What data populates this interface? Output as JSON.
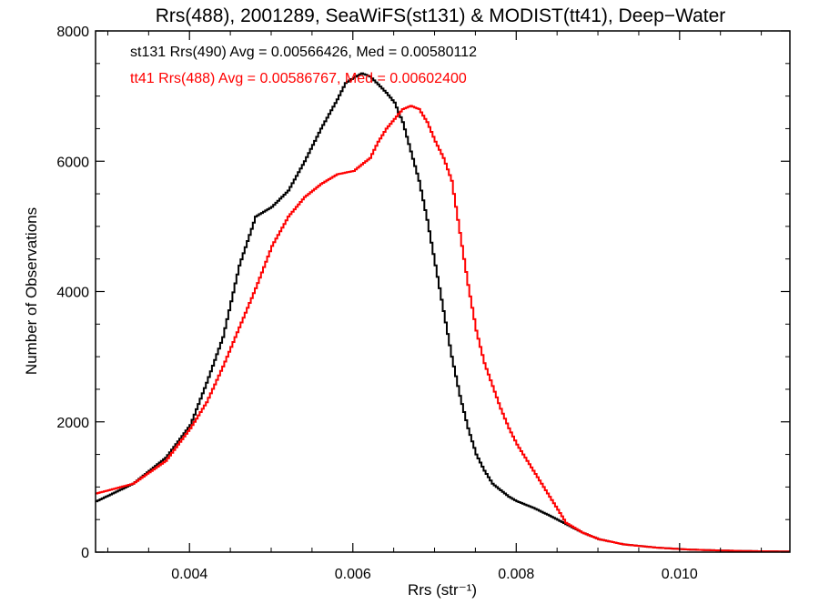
{
  "chart_data": {
    "type": "line",
    "title": "Rrs(488), 2001289, SeaWiFS(st131) & MODIST(tt41), Deep−Water",
    "xlabel": "Rrs (str⁻¹)",
    "ylabel": "Number of Observations",
    "xlim": [
      0.00285,
      0.01135
    ],
    "ylim": [
      0,
      8000
    ],
    "x_ticks": [
      0.004,
      0.006,
      0.008,
      0.01
    ],
    "x_tick_labels": [
      "0.004",
      "0.006",
      "0.008",
      "0.010"
    ],
    "y_ticks": [
      0,
      2000,
      4000,
      6000,
      8000
    ],
    "y_tick_labels": [
      "0",
      "2000",
      "4000",
      "6000",
      "8000"
    ],
    "grid": false,
    "legend_position": "top-left",
    "series": [
      {
        "label": "st131 Rrs(490) Avg = 0.00566426, Med = 0.00580112",
        "color": "#000000",
        "x": [
          0.00285,
          0.0033,
          0.0037,
          0.004,
          0.0042,
          0.0044,
          0.0046,
          0.0048,
          0.005,
          0.0052,
          0.0054,
          0.0056,
          0.0058,
          0.0059,
          0.006,
          0.0061,
          0.0062,
          0.0063,
          0.0064,
          0.0065,
          0.0066,
          0.0067,
          0.0068,
          0.0069,
          0.007,
          0.0071,
          0.0072,
          0.0073,
          0.0074,
          0.0075,
          0.0076,
          0.0077,
          0.0078,
          0.0079,
          0.008,
          0.0082,
          0.0084,
          0.0086,
          0.0088,
          0.009,
          0.0093,
          0.0097,
          0.0101,
          0.0105,
          0.0109,
          0.01135
        ],
        "y": [
          780,
          1050,
          1450,
          1950,
          2600,
          3300,
          4400,
          5150,
          5300,
          5550,
          6000,
          6500,
          6950,
          7200,
          7280,
          7350,
          7300,
          7180,
          7050,
          6900,
          6600,
          6150,
          5700,
          5100,
          4400,
          3700,
          3000,
          2400,
          1900,
          1500,
          1250,
          1050,
          950,
          850,
          780,
          680,
          560,
          430,
          300,
          200,
          120,
          70,
          40,
          25,
          15,
          10
        ]
      },
      {
        "label": "tt41 Rrs(488) Avg = 0.00586767, Med = 0.00602400",
        "color": "#ff0000",
        "x": [
          0.00285,
          0.0033,
          0.0037,
          0.004,
          0.0042,
          0.0044,
          0.0046,
          0.0048,
          0.005,
          0.0052,
          0.0054,
          0.0056,
          0.0058,
          0.006,
          0.0062,
          0.0063,
          0.0064,
          0.0065,
          0.0066,
          0.0067,
          0.0068,
          0.0069,
          0.007,
          0.0071,
          0.0072,
          0.0073,
          0.0074,
          0.0075,
          0.0076,
          0.0077,
          0.0078,
          0.0079,
          0.008,
          0.0081,
          0.0082,
          0.0083,
          0.0084,
          0.0085,
          0.0086,
          0.0088,
          0.009,
          0.0093,
          0.0097,
          0.0101,
          0.0105,
          0.0109,
          0.01135
        ],
        "y": [
          900,
          1050,
          1400,
          1900,
          2300,
          2850,
          3450,
          4050,
          4700,
          5150,
          5450,
          5650,
          5800,
          5850,
          6050,
          6300,
          6500,
          6650,
          6800,
          6850,
          6800,
          6600,
          6300,
          6050,
          5700,
          4900,
          4100,
          3400,
          2900,
          2550,
          2200,
          1900,
          1650,
          1450,
          1250,
          1050,
          850,
          650,
          450,
          300,
          200,
          120,
          70,
          40,
          25,
          15,
          10
        ]
      }
    ]
  }
}
